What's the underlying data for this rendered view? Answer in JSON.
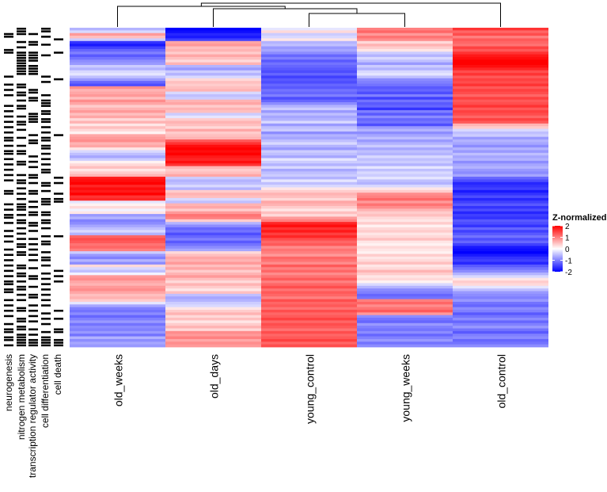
{
  "chart_data": {
    "type": "heatmap",
    "columns": [
      "old_weeks",
      "old_days",
      "young_control",
      "young_weeks",
      "old_control"
    ],
    "annotation_tracks": [
      "neurogenesis",
      "nitrogen metabolism",
      "transcription regulator activity",
      "cell differentiation",
      "cell death"
    ],
    "legend": {
      "title": "Z-normalized",
      "ticks": [
        2,
        1,
        0,
        -1,
        -2
      ],
      "range": [
        -2,
        2
      ],
      "colors": {
        "low": "#0000ff",
        "mid": "#ffffff",
        "high": "#ff0000"
      }
    },
    "dendrogram_order": [
      "old_weeks",
      "old_days",
      "young_control",
      "young_weeks",
      "old_control"
    ],
    "row_count": 120,
    "values": {
      "old_weeks": [
        -0.6,
        -0.3,
        0.8,
        0.5,
        -0.4,
        -1.6,
        -1.8,
        -1.5,
        -1.2,
        -1.0,
        -1.3,
        -1.1,
        -0.9,
        -0.8,
        -0.4,
        -0.6,
        -0.3,
        -0.2,
        -0.5,
        -0.8,
        -1.2,
        -1.4,
        0.9,
        0.6,
        0.7,
        0.8,
        0.5,
        0.9,
        0.7,
        0.4,
        0.6,
        0.8,
        0.5,
        0.7,
        0.3,
        0.6,
        0.2,
        0.5,
        0.3,
        0.1,
        0.7,
        0.8,
        0.9,
        0.6,
        0.7,
        0.2,
        -0.3,
        -0.5,
        -0.7,
        -0.4,
        0.1,
        0.3,
        0.5,
        0.2,
        0.4,
        0.6,
        1.8,
        1.9,
        2.0,
        1.7,
        1.9,
        1.8,
        2.0,
        1.6,
        1.7,
        -0.2,
        0.1,
        0.3,
        -0.1,
        0.2,
        -0.8,
        -0.6,
        -1.0,
        -0.9,
        -0.7,
        -0.5,
        -0.3,
        -0.6,
        1.2,
        1.4,
        1.3,
        1.1,
        1.2,
        1.0,
        -0.4,
        -0.8,
        -1.0,
        -0.6,
        -0.9,
        0.3,
        -0.3,
        -0.5,
        -0.1,
        0.8,
        0.9,
        0.7,
        0.6,
        0.8,
        0.9,
        0.7,
        0.5,
        0.6,
        0.4,
        -0.2,
        -0.7,
        -1.0,
        -1.1,
        -0.9,
        -1.2,
        -1.0,
        -0.8,
        -1.1,
        -0.9,
        -1.0,
        -0.8,
        -1.1,
        -0.6,
        -0.9,
        -0.7,
        -0.8
      ],
      "old_days": [
        -2.0,
        -1.9,
        -1.7,
        -1.8,
        -1.5,
        0.7,
        0.8,
        0.5,
        0.6,
        0.4,
        0.7,
        0.5,
        0.3,
        0.6,
        -0.6,
        -0.8,
        -0.4,
        -0.6,
        -0.3,
        0.3,
        0.5,
        0.4,
        0.5,
        0.6,
        -0.3,
        -0.5,
        -0.4,
        0.6,
        0.7,
        0.4,
        0.6,
        0.5,
        -0.4,
        -0.2,
        0.4,
        0.6,
        0.5,
        0.3,
        0.7,
        0.4,
        0.5,
        0.6,
        1.3,
        1.6,
        1.9,
        2.0,
        1.9,
        2.0,
        1.8,
        1.7,
        1.9,
        1.6,
        0.6,
        0.4,
        0.5,
        0.7,
        -0.4,
        -0.6,
        -0.5,
        -0.3,
        -0.6,
        0.4,
        0.6,
        0.5,
        -0.3,
        -0.5,
        0.6,
        0.7,
        0.4,
        0.8,
        1.1,
        1.0,
        0.4,
        -0.6,
        -0.9,
        -1.2,
        -1.1,
        -1.4,
        -1.2,
        -1.0,
        -1.3,
        -1.1,
        -0.9,
        -0.7,
        0.3,
        0.5,
        0.7,
        0.6,
        0.8,
        0.5,
        0.7,
        0.4,
        0.6,
        0.8,
        0.5,
        0.3,
        0.6,
        0.4,
        0.2,
        0.5,
        -0.5,
        -0.7,
        -0.6,
        -0.4,
        -0.3,
        0.2,
        0.4,
        0.6,
        0.3,
        0.5,
        0.2,
        0.4,
        0.6,
        0.3,
        0.9,
        0.8,
        1.0,
        0.7,
        0.9,
        0.8
      ],
      "young_control": [
        -0.2,
        0.3,
        -0.4,
        -0.3,
        0.2,
        -0.6,
        -0.5,
        -0.8,
        -0.7,
        -0.9,
        -1.2,
        -1.0,
        -1.3,
        -1.1,
        -1.2,
        -1.3,
        -1.4,
        -1.2,
        -1.5,
        -1.3,
        -1.4,
        -1.2,
        -1.3,
        -1.1,
        -1.2,
        -1.0,
        -1.4,
        -1.2,
        -0.9,
        -0.6,
        -0.4,
        -0.8,
        -0.5,
        -0.7,
        -0.6,
        -0.3,
        -0.8,
        -0.5,
        -0.4,
        -0.9,
        -0.6,
        -0.7,
        -0.5,
        -0.3,
        -0.6,
        -0.8,
        -0.4,
        -0.5,
        -0.7,
        -0.2,
        -0.4,
        -0.6,
        -0.3,
        -0.7,
        -0.5,
        -0.4,
        -0.6,
        -0.2,
        -0.5,
        -0.3,
        0.2,
        0.4,
        0.6,
        0.5,
        0.3,
        0.7,
        0.6,
        0.4,
        0.2,
        0.5,
        0.3,
        0.8,
        1.0,
        1.7,
        1.9,
        1.6,
        1.8,
        1.5,
        1.7,
        1.4,
        1.2,
        1.3,
        0.9,
        1.1,
        1.0,
        0.8,
        1.2,
        1.1,
        0.9,
        1.3,
        1.0,
        1.2,
        0.9,
        1.1,
        1.3,
        1.0,
        1.2,
        1.4,
        1.1,
        1.3,
        1.2,
        1.0,
        1.4,
        1.2,
        1.3,
        1.1,
        1.4,
        1.2,
        1.3,
        1.5,
        1.2,
        1.4,
        1.3,
        1.1,
        1.4,
        1.2,
        1.3,
        1.5,
        1.2,
        1.4
      ],
      "young_weeks": [
        1.0,
        1.2,
        0.8,
        1.1,
        0.9,
        0.3,
        0.6,
        0.4,
        0.2,
        -0.4,
        -0.6,
        -0.3,
        -0.5,
        -0.8,
        -0.4,
        -0.6,
        -0.3,
        -0.2,
        -0.5,
        -0.9,
        -1.0,
        -1.1,
        -1.3,
        -1.2,
        -1.4,
        -1.0,
        -1.5,
        -1.1,
        -1.3,
        -1.2,
        -1.6,
        -1.0,
        -1.3,
        -0.9,
        -1.2,
        -1.1,
        -1.4,
        -0.8,
        -0.6,
        -0.9,
        -0.7,
        -0.5,
        -0.8,
        -0.6,
        -0.4,
        -0.7,
        -0.5,
        -0.6,
        -0.3,
        -0.5,
        -0.4,
        -0.6,
        -0.2,
        -0.5,
        -0.3,
        -0.4,
        -0.2,
        -0.5,
        -0.6,
        -0.3,
        0.2,
        0.4,
        0.9,
        1.0,
        1.2,
        0.8,
        1.1,
        0.9,
        0.6,
        0.4,
        0.5,
        0.3,
        0.2,
        0.4,
        0.1,
        0.3,
        0.4,
        0.2,
        0.3,
        0.5,
        0.2,
        0.1,
        0.3,
        0.2,
        0.1,
        0.4,
        0.2,
        0.3,
        0.5,
        0.2,
        0.3,
        0.6,
        0.4,
        0.2,
        0.3,
        0.1,
        -0.3,
        -0.6,
        -0.9,
        -1.0,
        -1.2,
        -1.1,
        1.0,
        1.2,
        0.9,
        1.1,
        1.3,
        0.8,
        -0.9,
        -1.1,
        -1.2,
        -0.8,
        -1.0,
        -1.1,
        -0.9,
        -1.2,
        -1.0,
        -0.8,
        -1.1,
        -0.9
      ],
      "old_control": [
        1.6,
        1.2,
        1.4,
        1.0,
        1.3,
        1.2,
        1.1,
        1.5,
        1.3,
        1.6,
        1.8,
        1.9,
        2.0,
        2.0,
        1.9,
        1.7,
        1.4,
        1.6,
        1.3,
        1.5,
        1.4,
        1.6,
        1.3,
        1.5,
        1.4,
        1.2,
        1.5,
        1.3,
        1.4,
        1.6,
        1.3,
        1.5,
        1.4,
        1.2,
        1.5,
        1.3,
        0.6,
        0.4,
        -0.3,
        -0.5,
        -0.4,
        -0.8,
        -0.6,
        -0.7,
        -0.9,
        -0.6,
        -0.8,
        -0.5,
        -0.7,
        -0.6,
        -0.9,
        -0.7,
        -0.6,
        -0.8,
        -0.9,
        -0.7,
        -1.2,
        -1.4,
        -1.7,
        -1.6,
        -1.5,
        -1.8,
        -1.6,
        -1.4,
        -1.7,
        -1.5,
        -1.3,
        -1.6,
        -1.4,
        -1.7,
        -1.5,
        -1.6,
        -1.3,
        -1.4,
        -1.6,
        -1.2,
        -1.5,
        -1.3,
        -1.1,
        -1.4,
        -1.2,
        -1.5,
        -1.8,
        -1.9,
        -2.0,
        -1.8,
        -1.6,
        -1.5,
        -1.7,
        -1.3,
        -1.1,
        -0.9,
        -0.6,
        -0.3,
        0.2,
        0.4,
        0.3,
        -0.2,
        -0.5,
        -0.8,
        -0.9,
        -1.0,
        -0.8,
        -1.1,
        -1.2,
        -0.9,
        -1.0,
        -1.3,
        -1.1,
        -0.9,
        -1.2,
        -1.0,
        -0.8,
        -1.1,
        -1.3,
        -1.0,
        -0.9,
        -1.2,
        -1.1,
        -0.9
      ]
    },
    "annotations": [
      [
        0,
        1,
        0,
        1,
        0
      ],
      [
        0,
        1,
        0,
        1,
        0
      ],
      [
        1,
        1,
        1,
        0,
        0
      ],
      [
        1,
        0,
        0,
        1,
        0
      ],
      [
        0,
        0,
        0,
        0,
        1
      ],
      [
        0,
        1,
        1,
        0,
        0
      ],
      [
        0,
        0,
        1,
        1,
        0
      ],
      [
        0,
        1,
        0,
        0,
        0
      ],
      [
        1,
        0,
        0,
        0,
        0
      ],
      [
        1,
        1,
        1,
        0,
        1
      ],
      [
        0,
        1,
        1,
        1,
        0
      ],
      [
        0,
        1,
        1,
        0,
        0
      ],
      [
        0,
        1,
        1,
        0,
        0
      ],
      [
        0,
        1,
        0,
        0,
        0
      ],
      [
        0,
        1,
        1,
        0,
        0
      ],
      [
        0,
        1,
        1,
        0,
        0
      ],
      [
        0,
        1,
        1,
        0,
        0
      ],
      [
        0,
        1,
        1,
        0,
        0
      ],
      [
        1,
        0,
        0,
        1,
        0
      ],
      [
        0,
        0,
        0,
        0,
        1
      ],
      [
        0,
        0,
        0,
        1,
        0
      ],
      [
        1,
        1,
        0,
        0,
        0
      ],
      [
        0,
        1,
        0,
        0,
        0
      ],
      [
        1,
        0,
        1,
        0,
        0
      ],
      [
        0,
        1,
        1,
        0,
        0
      ],
      [
        1,
        1,
        0,
        1,
        0
      ],
      [
        0,
        0,
        1,
        0,
        0
      ],
      [
        0,
        1,
        1,
        1,
        0
      ],
      [
        0,
        0,
        0,
        1,
        0
      ],
      [
        1,
        1,
        0,
        1,
        0
      ],
      [
        0,
        1,
        0,
        0,
        0
      ],
      [
        1,
        0,
        0,
        1,
        0
      ],
      [
        0,
        0,
        1,
        1,
        0
      ],
      [
        1,
        1,
        1,
        0,
        0
      ],
      [
        0,
        0,
        1,
        1,
        0
      ],
      [
        1,
        1,
        1,
        1,
        0
      ],
      [
        0,
        1,
        0,
        0,
        0
      ],
      [
        1,
        0,
        0,
        1,
        0
      ],
      [
        0,
        1,
        0,
        0,
        0
      ],
      [
        1,
        0,
        0,
        1,
        0
      ],
      [
        0,
        0,
        1,
        0,
        1
      ],
      [
        1,
        1,
        0,
        1,
        0
      ],
      [
        1,
        0,
        1,
        1,
        0
      ],
      [
        0,
        0,
        1,
        0,
        0
      ],
      [
        1,
        1,
        0,
        1,
        0
      ],
      [
        0,
        0,
        0,
        1,
        0
      ],
      [
        1,
        1,
        0,
        0,
        0
      ],
      [
        1,
        1,
        0,
        1,
        0
      ],
      [
        0,
        0,
        1,
        0,
        0
      ],
      [
        1,
        0,
        0,
        1,
        0
      ],
      [
        0,
        1,
        1,
        0,
        0
      ],
      [
        1,
        1,
        0,
        1,
        0
      ],
      [
        0,
        0,
        1,
        0,
        0
      ],
      [
        1,
        0,
        0,
        1,
        0
      ],
      [
        0,
        0,
        0,
        1,
        0
      ],
      [
        1,
        1,
        1,
        0,
        0
      ],
      [
        0,
        0,
        1,
        0,
        1
      ],
      [
        1,
        1,
        0,
        0,
        0
      ],
      [
        0,
        1,
        1,
        1,
        1
      ],
      [
        0,
        0,
        0,
        1,
        0
      ],
      [
        0,
        1,
        0,
        0,
        0
      ],
      [
        1,
        0,
        1,
        1,
        0
      ],
      [
        1,
        1,
        1,
        0,
        1
      ],
      [
        0,
        0,
        0,
        0,
        0
      ],
      [
        0,
        1,
        0,
        1,
        1
      ],
      [
        0,
        0,
        1,
        1,
        1
      ],
      [
        1,
        1,
        0,
        1,
        0
      ],
      [
        0,
        1,
        1,
        0,
        0
      ],
      [
        1,
        1,
        0,
        0,
        0
      ],
      [
        0,
        0,
        1,
        1,
        0
      ],
      [
        1,
        1,
        1,
        1,
        0
      ],
      [
        1,
        0,
        0,
        0,
        0
      ],
      [
        0,
        1,
        0,
        1,
        0
      ],
      [
        1,
        1,
        1,
        1,
        0
      ],
      [
        0,
        0,
        1,
        0,
        0
      ],
      [
        0,
        1,
        0,
        1,
        0
      ],
      [
        1,
        0,
        1,
        0,
        0
      ],
      [
        0,
        1,
        0,
        0,
        0
      ],
      [
        1,
        0,
        0,
        1,
        1
      ],
      [
        0,
        1,
        1,
        0,
        0
      ],
      [
        1,
        0,
        0,
        1,
        0
      ],
      [
        0,
        1,
        1,
        1,
        0
      ],
      [
        0,
        1,
        0,
        0,
        0
      ],
      [
        1,
        0,
        1,
        0,
        0
      ],
      [
        0,
        1,
        0,
        1,
        0
      ],
      [
        1,
        1,
        1,
        0,
        0
      ],
      [
        0,
        0,
        0,
        1,
        0
      ],
      [
        1,
        0,
        1,
        1,
        0
      ],
      [
        0,
        0,
        0,
        0,
        0
      ],
      [
        1,
        1,
        0,
        1,
        0
      ],
      [
        0,
        1,
        1,
        0,
        0
      ],
      [
        1,
        0,
        0,
        0,
        1
      ],
      [
        0,
        1,
        0,
        1,
        0
      ],
      [
        1,
        1,
        1,
        0,
        1
      ],
      [
        0,
        0,
        1,
        1,
        0
      ],
      [
        1,
        1,
        0,
        0,
        1
      ],
      [
        1,
        0,
        0,
        1,
        0
      ],
      [
        0,
        1,
        1,
        0,
        0
      ],
      [
        1,
        1,
        0,
        1,
        0
      ],
      [
        1,
        0,
        0,
        0,
        0
      ],
      [
        0,
        1,
        1,
        1,
        0
      ],
      [
        0,
        0,
        1,
        0,
        0
      ],
      [
        1,
        1,
        0,
        1,
        0
      ],
      [
        0,
        0,
        0,
        0,
        0
      ],
      [
        1,
        0,
        1,
        1,
        0
      ],
      [
        0,
        1,
        0,
        0,
        0
      ],
      [
        1,
        1,
        1,
        0,
        1
      ],
      [
        0,
        0,
        0,
        1,
        0
      ],
      [
        1,
        0,
        1,
        0,
        0
      ],
      [
        0,
        1,
        0,
        1,
        1
      ],
      [
        0,
        1,
        1,
        0,
        0
      ],
      [
        1,
        0,
        0,
        1,
        0
      ],
      [
        0,
        1,
        0,
        0,
        0
      ],
      [
        1,
        1,
        1,
        0,
        1
      ],
      [
        1,
        0,
        0,
        1,
        1
      ],
      [
        0,
        1,
        1,
        0,
        0
      ],
      [
        1,
        1,
        0,
        1,
        0
      ],
      [
        1,
        1,
        1,
        1,
        1
      ],
      [
        0,
        1,
        1,
        1,
        1
      ],
      [
        1,
        1,
        1,
        1,
        1
      ]
    ]
  }
}
